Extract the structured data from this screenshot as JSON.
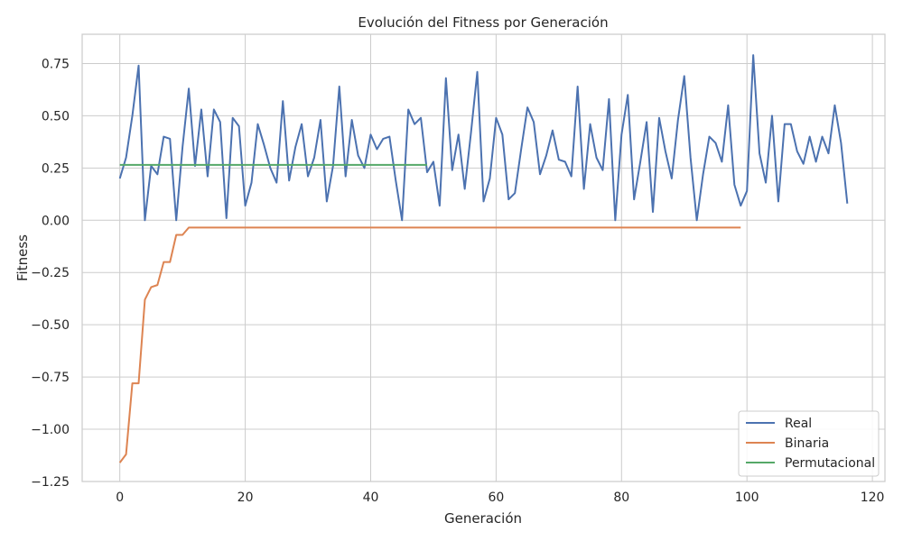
{
  "chart_data": {
    "type": "line",
    "title": "Evolución del Fitness por Generación",
    "xlabel": "Generación",
    "ylabel": "Fitness",
    "xlim": [
      -6,
      122
    ],
    "ylim": [
      -1.25,
      0.89
    ],
    "xticks": [
      0,
      20,
      40,
      60,
      80,
      100,
      120
    ],
    "yticks": [
      -1.25,
      -1.0,
      -0.75,
      -0.5,
      -0.25,
      0.0,
      0.25,
      0.5,
      0.75
    ],
    "ytick_labels": [
      "−1.25",
      "−1.00",
      "−0.75",
      "−0.50",
      "−0.25",
      "0.00",
      "0.25",
      "0.50",
      "0.75"
    ],
    "xtick_labels": [
      "0",
      "20",
      "40",
      "60",
      "80",
      "100",
      "120"
    ],
    "grid": true,
    "legend_position": "bottom-right",
    "series": [
      {
        "name": "Real",
        "color": "#4c72b0",
        "x_start": 0,
        "values": [
          0.2,
          0.3,
          0.5,
          0.74,
          0.0,
          0.26,
          0.22,
          0.4,
          0.39,
          0.0,
          0.35,
          0.63,
          0.26,
          0.53,
          0.21,
          0.53,
          0.47,
          0.01,
          0.49,
          0.45,
          0.07,
          0.18,
          0.46,
          0.36,
          0.25,
          0.18,
          0.57,
          0.19,
          0.35,
          0.46,
          0.21,
          0.3,
          0.48,
          0.09,
          0.26,
          0.64,
          0.21,
          0.48,
          0.31,
          0.25,
          0.41,
          0.34,
          0.39,
          0.4,
          0.19,
          0.0,
          0.53,
          0.46,
          0.49,
          0.23,
          0.28,
          0.07,
          0.68,
          0.24,
          0.41,
          0.15,
          0.42,
          0.71,
          0.09,
          0.2,
          0.49,
          0.41,
          0.1,
          0.13,
          0.34,
          0.54,
          0.47,
          0.22,
          0.31,
          0.43,
          0.29,
          0.28,
          0.21,
          0.64,
          0.15,
          0.46,
          0.3,
          0.24,
          0.58,
          0.0,
          0.41,
          0.6,
          0.1,
          0.28,
          0.47,
          0.04,
          0.49,
          0.33,
          0.2,
          0.48,
          0.69,
          0.3,
          0.0,
          0.22,
          0.4,
          0.37,
          0.28,
          0.55,
          0.17,
          0.07,
          0.14,
          0.79,
          0.32,
          0.18,
          0.5,
          0.09,
          0.46,
          0.46,
          0.33,
          0.27,
          0.4,
          0.28,
          0.4,
          0.32,
          0.55,
          0.37,
          0.08
        ]
      },
      {
        "name": "Binaria",
        "color": "#dd8452",
        "x_start": 0,
        "values": [
          -1.16,
          -1.12,
          -0.78,
          -0.78,
          -0.38,
          -0.32,
          -0.31,
          -0.2,
          -0.2,
          -0.07,
          -0.07,
          -0.035,
          -0.035,
          -0.035,
          -0.035,
          -0.035,
          -0.035,
          -0.035,
          -0.035,
          -0.035,
          -0.035,
          -0.035,
          -0.035,
          -0.035,
          -0.035,
          -0.035,
          -0.035,
          -0.035,
          -0.035,
          -0.035,
          -0.035,
          -0.035,
          -0.035,
          -0.035,
          -0.035,
          -0.035,
          -0.035,
          -0.035,
          -0.035,
          -0.035,
          -0.035,
          -0.035,
          -0.035,
          -0.035,
          -0.035,
          -0.035,
          -0.035,
          -0.035,
          -0.035,
          -0.035,
          -0.035,
          -0.035,
          -0.035,
          -0.035,
          -0.035,
          -0.035,
          -0.035,
          -0.035,
          -0.035,
          -0.035,
          -0.035,
          -0.035,
          -0.035,
          -0.035,
          -0.035,
          -0.035,
          -0.035,
          -0.035,
          -0.035,
          -0.035,
          -0.035,
          -0.035,
          -0.035,
          -0.035,
          -0.035,
          -0.035,
          -0.035,
          -0.035,
          -0.035,
          -0.035,
          -0.035,
          -0.035,
          -0.035,
          -0.035,
          -0.035,
          -0.035,
          -0.035,
          -0.035,
          -0.035,
          -0.035,
          -0.035,
          -0.035,
          -0.035,
          -0.035,
          -0.035,
          -0.035,
          -0.035,
          -0.035,
          -0.035,
          -0.035
        ]
      },
      {
        "name": "Permutacional",
        "color": "#55a868",
        "x_start": 0,
        "values": [
          0.265,
          0.265,
          0.265,
          0.265,
          0.265,
          0.265,
          0.265,
          0.265,
          0.265,
          0.265,
          0.265,
          0.265,
          0.265,
          0.265,
          0.265,
          0.265,
          0.265,
          0.265,
          0.265,
          0.265,
          0.265,
          0.265,
          0.265,
          0.265,
          0.265,
          0.265,
          0.265,
          0.265,
          0.265,
          0.265,
          0.265,
          0.265,
          0.265,
          0.265,
          0.265,
          0.265,
          0.265,
          0.265,
          0.265,
          0.265,
          0.265,
          0.265,
          0.265,
          0.265,
          0.265,
          0.265,
          0.265,
          0.265,
          0.265,
          0.265
        ]
      }
    ]
  }
}
